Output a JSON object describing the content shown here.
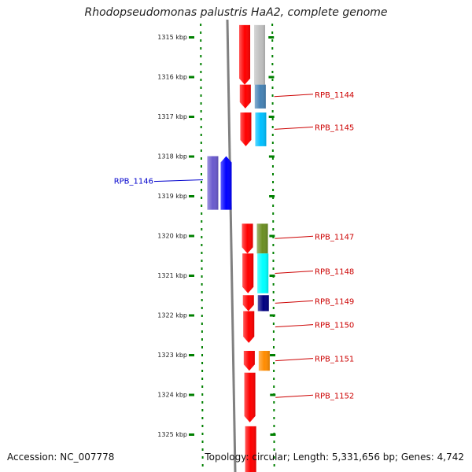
{
  "header": {
    "title": "Rhodopseudomonas palustris HaA2, complete genome"
  },
  "footer": {
    "accession": "Accession: NC_007778",
    "summary": "Topology: circular; Length: 5,331,656 bp; Genes: 4,742"
  },
  "scale": {
    "ticks": [
      {
        "kbp": 1315,
        "label": "1315 kbp"
      },
      {
        "kbp": 1316,
        "label": "1316 kbp"
      },
      {
        "kbp": 1317,
        "label": "1317 kbp"
      },
      {
        "kbp": 1318,
        "label": "1318 kbp"
      },
      {
        "kbp": 1319,
        "label": "1319 kbp"
      },
      {
        "kbp": 1320,
        "label": "1320 kbp"
      },
      {
        "kbp": 1321,
        "label": "1321 kbp"
      },
      {
        "kbp": 1322,
        "label": "1322 kbp"
      },
      {
        "kbp": 1323,
        "label": "1323 kbp"
      },
      {
        "kbp": 1324,
        "label": "1324 kbp"
      },
      {
        "kbp": 1325,
        "label": "1325 kbp"
      }
    ]
  },
  "genes": [
    {
      "name": "",
      "strand": "+",
      "start": 1314.7,
      "end": 1316.2,
      "color": "#ff0000",
      "track": "cds",
      "side": "right"
    },
    {
      "name": "",
      "strand": "+",
      "start": 1314.7,
      "end": 1316.2,
      "color": "#c0c0c0",
      "track": "feat",
      "side": "right"
    },
    {
      "name": "RPB_1144",
      "strand": "+",
      "start": 1316.2,
      "end": 1316.8,
      "color": "#ff0000",
      "track": "cds",
      "side": "right",
      "labelColor": "#cc0000"
    },
    {
      "name": "",
      "strand": "+",
      "start": 1316.2,
      "end": 1316.8,
      "color": "#4682b4",
      "track": "feat",
      "side": "right"
    },
    {
      "name": "RPB_1145",
      "strand": "+",
      "start": 1316.9,
      "end": 1317.75,
      "color": "#ff0000",
      "track": "cds",
      "side": "right",
      "labelColor": "#cc0000"
    },
    {
      "name": "",
      "strand": "+",
      "start": 1316.9,
      "end": 1317.75,
      "color": "#00bfff",
      "track": "feat",
      "side": "right"
    },
    {
      "name": "RPB_1146",
      "strand": "-",
      "start": 1318.0,
      "end": 1319.35,
      "color": "#0000ff",
      "track": "cds",
      "side": "left",
      "labelColor": "#0000cc"
    },
    {
      "name": "",
      "strand": "-",
      "start": 1318.0,
      "end": 1319.35,
      "color": "#6a5acd",
      "track": "feat",
      "side": "left"
    },
    {
      "name": "RPB_1147",
      "strand": "+",
      "start": 1319.7,
      "end": 1320.45,
      "color": "#ff0000",
      "track": "cds",
      "side": "right",
      "labelColor": "#cc0000"
    },
    {
      "name": "",
      "strand": "+",
      "start": 1319.7,
      "end": 1320.45,
      "color": "#6b8e23",
      "track": "feat",
      "side": "right"
    },
    {
      "name": "RPB_1148",
      "strand": "+",
      "start": 1320.45,
      "end": 1321.45,
      "color": "#ff0000",
      "track": "cds",
      "side": "right",
      "labelColor": "#cc0000"
    },
    {
      "name": "",
      "strand": "+",
      "start": 1320.45,
      "end": 1321.45,
      "color": "#00ffff",
      "track": "feat",
      "side": "right"
    },
    {
      "name": "RPB_1149",
      "strand": "+",
      "start": 1321.5,
      "end": 1321.9,
      "color": "#ff0000",
      "track": "cds",
      "side": "right",
      "labelColor": "#cc0000"
    },
    {
      "name": "",
      "strand": "+",
      "start": 1321.5,
      "end": 1321.9,
      "color": "#000080",
      "track": "feat",
      "side": "right"
    },
    {
      "name": "RPB_1150",
      "strand": "+",
      "start": 1321.9,
      "end": 1322.7,
      "color": "#ff0000",
      "track": "cds",
      "side": "right",
      "labelColor": "#cc0000"
    },
    {
      "name": "RPB_1151",
      "strand": "+",
      "start": 1322.9,
      "end": 1323.4,
      "color": "#ff0000",
      "track": "cds",
      "side": "right",
      "labelColor": "#cc0000"
    },
    {
      "name": "",
      "strand": "+",
      "start": 1322.9,
      "end": 1323.4,
      "color": "#ff8c00",
      "track": "feat",
      "side": "right"
    },
    {
      "name": "RPB_1152",
      "strand": "+",
      "start": 1323.45,
      "end": 1324.7,
      "color": "#ff0000",
      "track": "cds",
      "side": "right",
      "labelColor": "#cc0000"
    },
    {
      "name": "",
      "strand": "+",
      "start": 1324.8,
      "end": 1326.2,
      "color": "#ff0000",
      "track": "cds",
      "side": "right"
    }
  ],
  "colors": {
    "backbone": "#808080",
    "tick": "#008000",
    "label_line_red": "#cc0000",
    "label_line_blue": "#0000cc"
  }
}
